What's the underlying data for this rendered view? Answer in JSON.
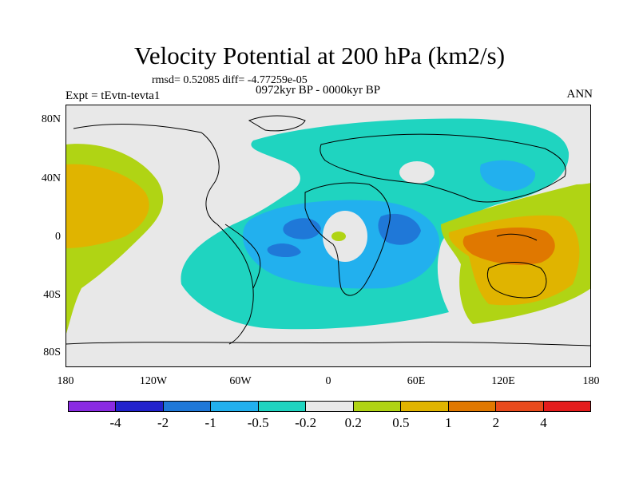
{
  "title": "Velocity Potential at 200 hPa (km2/s)",
  "stats_line": "rmsd= 0.52085 diff= -4.77259e-05",
  "experiment": "Expt = tEvtn-tevta1",
  "period": "0972kyr BP - 0000kyr BP",
  "season": "ANN",
  "lat_labels": [
    "80N",
    "40N",
    "0",
    "40S",
    "80S"
  ],
  "lon_labels": [
    "180",
    "120W",
    "60W",
    "0",
    "60E",
    "120E",
    "180"
  ],
  "colorbar": {
    "colors": [
      "#8a2be2",
      "#2222cc",
      "#1f78d8",
      "#22b0ee",
      "#1fd4c0",
      "#e8e8e8",
      "#b0d414",
      "#e0b400",
      "#e07800",
      "#e84a1c",
      "#e41c1c"
    ],
    "labels": [
      "-4",
      "-2",
      "-1",
      "-0.5",
      "-0.2",
      "0.2",
      "0.5",
      "1",
      "2",
      "4"
    ]
  },
  "map_colors": {
    "land_outline": "#000000",
    "neutral": "#e8e8e8",
    "teal": "#1fd4c0",
    "cyan": "#22b0ee",
    "blue": "#1f78d8",
    "green": "#b0d414",
    "amber": "#e0b400",
    "orange": "#e07800"
  }
}
